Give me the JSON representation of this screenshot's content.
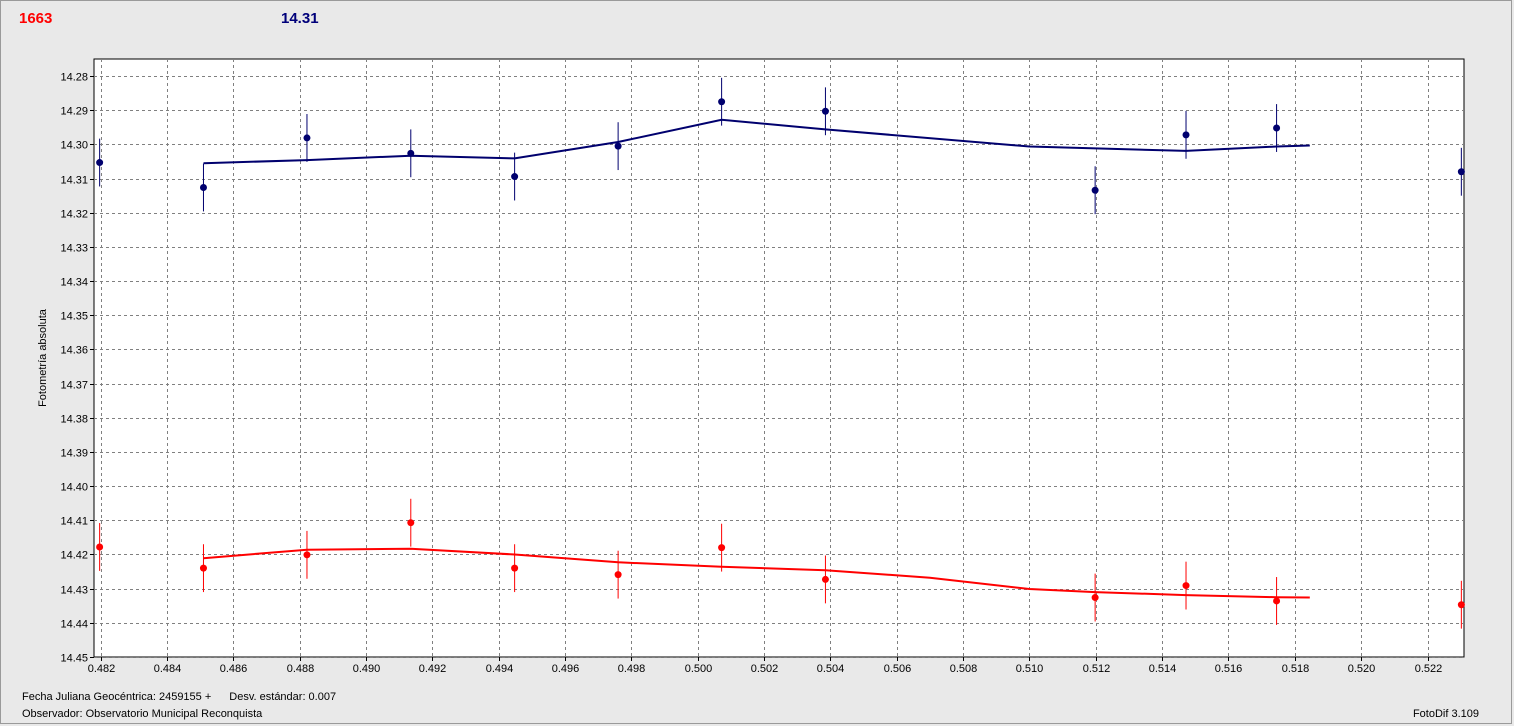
{
  "header": {
    "left_value": "1663",
    "right_value": "14.31"
  },
  "footer": {
    "julian_label": "Fecha Juliana Geocéntrica: 2459155 +",
    "std_label": "Desv. estándar: 0.007",
    "observer": "Observador: Observatorio Municipal Reconquista",
    "version": "FotoDif 3.109"
  },
  "colors": {
    "background": "#e9e9e9",
    "plot_bg": "#ffffff",
    "grid": "#808080",
    "blue_series": "#00006e",
    "red_series": "#ff0000"
  },
  "chart_data": {
    "type": "scatter",
    "title": "",
    "xlabel": "",
    "ylabel": "Fotometría absoluta",
    "xlim": [
      0.4818,
      0.5231
    ],
    "ylim": [
      14.45,
      14.275
    ],
    "y_inverted": true,
    "grid": true,
    "x_ticks": [
      "0.482",
      "0.484",
      "0.486",
      "0.488",
      "0.490",
      "0.492",
      "0.494",
      "0.496",
      "0.498",
      "0.500",
      "0.502",
      "0.504",
      "0.506",
      "0.508",
      "0.510",
      "0.512",
      "0.514",
      "0.516",
      "0.518",
      "0.520",
      "0.522"
    ],
    "y_ticks": [
      "14.28",
      "14.29",
      "14.30",
      "14.31",
      "14.32",
      "14.33",
      "14.34",
      "14.35",
      "14.36",
      "14.37",
      "14.38",
      "14.39",
      "14.40",
      "14.41",
      "14.42",
      "14.43",
      "14.44",
      "14.45"
    ],
    "series": [
      {
        "color": "#00006e",
        "points": [
          {
            "x": 0.48197,
            "y": 14.3053,
            "err": 0.007
          },
          {
            "x": 0.4851,
            "y": 14.3126,
            "err": 0.007
          },
          {
            "x": 0.48822,
            "y": 14.2981,
            "err": 0.007
          },
          {
            "x": 0.49135,
            "y": 14.3026,
            "err": 0.007
          },
          {
            "x": 0.49448,
            "y": 14.3094,
            "err": 0.007
          },
          {
            "x": 0.4976,
            "y": 14.3005,
            "err": 0.007
          },
          {
            "x": 0.50072,
            "y": 14.2875,
            "err": 0.007
          },
          {
            "x": 0.50385,
            "y": 14.2903,
            "err": 0.007
          },
          {
            "x": 0.51198,
            "y": 14.3134,
            "err": 0.007
          },
          {
            "x": 0.51472,
            "y": 14.2972,
            "err": 0.007
          },
          {
            "x": 0.51745,
            "y": 14.2952,
            "err": 0.007
          },
          {
            "x": 0.52302,
            "y": 14.308,
            "err": 0.007
          }
        ],
        "fit": [
          {
            "x": 0.4851,
            "y": 14.3055
          },
          {
            "x": 0.48822,
            "y": 14.3046
          },
          {
            "x": 0.49135,
            "y": 14.3033
          },
          {
            "x": 0.49448,
            "y": 14.3041
          },
          {
            "x": 0.4976,
            "y": 14.2993
          },
          {
            "x": 0.50072,
            "y": 14.2928
          },
          {
            "x": 0.50385,
            "y": 14.2956
          },
          {
            "x": 0.51,
            "y": 14.3006
          },
          {
            "x": 0.51472,
            "y": 14.3019
          },
          {
            "x": 0.51745,
            "y": 14.3006
          },
          {
            "x": 0.51845,
            "y": 14.3003
          }
        ]
      },
      {
        "color": "#ff0000",
        "points": [
          {
            "x": 0.48197,
            "y": 14.4178,
            "err": 0.007
          },
          {
            "x": 0.4851,
            "y": 14.424,
            "err": 0.007
          },
          {
            "x": 0.48822,
            "y": 14.4201,
            "err": 0.007
          },
          {
            "x": 0.49135,
            "y": 14.4107,
            "err": 0.007
          },
          {
            "x": 0.49448,
            "y": 14.424,
            "err": 0.007
          },
          {
            "x": 0.4976,
            "y": 14.4259,
            "err": 0.007
          },
          {
            "x": 0.50072,
            "y": 14.418,
            "err": 0.007
          },
          {
            "x": 0.50385,
            "y": 14.4273,
            "err": 0.007
          },
          {
            "x": 0.51198,
            "y": 14.4326,
            "err": 0.007
          },
          {
            "x": 0.51472,
            "y": 14.4291,
            "err": 0.007
          },
          {
            "x": 0.51745,
            "y": 14.4336,
            "err": 0.007
          },
          {
            "x": 0.52302,
            "y": 14.4347,
            "err": 0.007
          }
        ],
        "fit": [
          {
            "x": 0.4851,
            "y": 14.4211
          },
          {
            "x": 0.48822,
            "y": 14.4186
          },
          {
            "x": 0.49135,
            "y": 14.4183
          },
          {
            "x": 0.49448,
            "y": 14.42
          },
          {
            "x": 0.4976,
            "y": 14.4223
          },
          {
            "x": 0.50072,
            "y": 14.4236
          },
          {
            "x": 0.50385,
            "y": 14.4246
          },
          {
            "x": 0.507,
            "y": 14.4268
          },
          {
            "x": 0.51,
            "y": 14.4301
          },
          {
            "x": 0.51198,
            "y": 14.431
          },
          {
            "x": 0.51472,
            "y": 14.4319
          },
          {
            "x": 0.51745,
            "y": 14.4325
          },
          {
            "x": 0.51845,
            "y": 14.4326
          }
        ]
      }
    ]
  }
}
